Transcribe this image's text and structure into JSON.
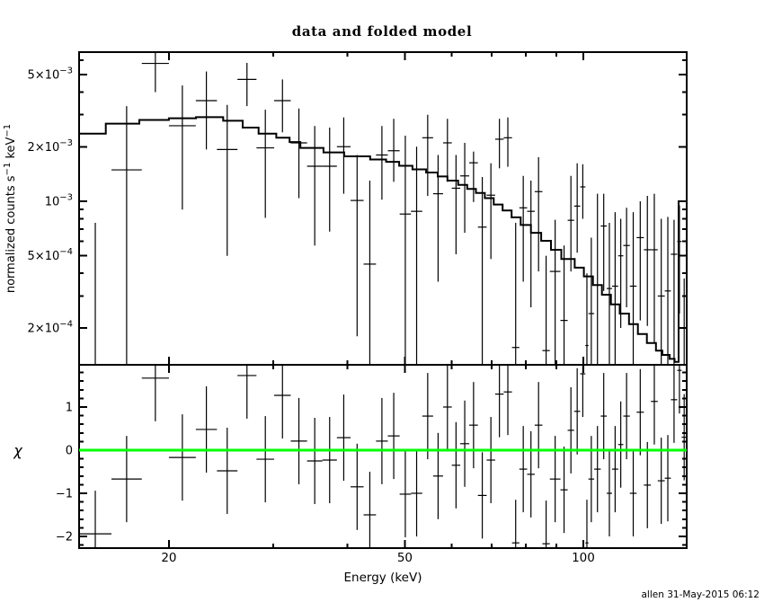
{
  "page": {
    "background": "#ffffff",
    "credit": "allen 31-May-2015 06:12"
  },
  "chart_data": {
    "type": "scatter",
    "title": "data and folded model",
    "xlabel": "Energy (keV)",
    "x_scale": "log",
    "x_range": [
      14.11,
      149.4
    ],
    "x_major_ticks": [
      {
        "v": 20,
        "label": "20"
      },
      {
        "v": 50,
        "label": "50"
      },
      {
        "v": 100,
        "label": "100"
      }
    ],
    "x_minor_ticks": [
      30,
      40,
      60,
      70,
      80,
      90
    ],
    "colors": {
      "frame": "#000000",
      "data": "#000000",
      "model": "#000000",
      "zero_line": "#00ff00",
      "background": "#ffffff"
    },
    "points_format": "[E_lo_keV, E_hi_keV, value, err_lo_end, err_hi_end, chi]; value in counts s^-1 keV^-1; null = clipped beyond panel edge; chi error bars are +/-1",
    "points": [
      [
        14.11,
        16.0,
        null,
        null,
        0.00076,
        -1.94
      ],
      [
        16.0,
        18.0,
        0.00149,
        null,
        0.00335,
        -0.67
      ],
      [
        18.0,
        20.0,
        0.00576,
        0.004,
        null,
        1.67
      ],
      [
        20.0,
        22.2,
        0.00261,
        0.0009,
        0.00435,
        -0.17
      ],
      [
        22.2,
        24.1,
        0.00359,
        0.00193,
        0.0052,
        0.48
      ],
      [
        24.1,
        26.1,
        0.00193,
        0.0005,
        0.0034,
        -0.48
      ],
      [
        26.1,
        28.1,
        0.0047,
        0.00335,
        0.0058,
        1.73
      ],
      [
        28.1,
        30.1,
        0.00197,
        0.00081,
        0.0032,
        -0.21
      ],
      [
        30.1,
        32.1,
        0.00359,
        0.0024,
        0.0047,
        1.27
      ],
      [
        32.1,
        34.2,
        0.0021,
        0.00104,
        0.00325,
        0.21
      ],
      [
        34.2,
        36.3,
        0.00156,
        0.00057,
        0.0026,
        -0.25
      ],
      [
        36.3,
        38.4,
        0.00156,
        0.00068,
        0.00255,
        -0.23
      ],
      [
        38.4,
        40.5,
        0.002,
        0.0011,
        0.0029,
        0.29
      ],
      [
        40.5,
        42.6,
        0.00101,
        0.00018,
        0.0018,
        -0.85
      ],
      [
        42.6,
        44.7,
        0.00045,
        null,
        0.0013,
        -1.5
      ],
      [
        44.7,
        46.8,
        0.0018,
        0.00102,
        0.0026,
        0.21
      ],
      [
        46.8,
        49.0,
        0.0019,
        0.00128,
        0.00285,
        0.33
      ],
      [
        49.0,
        51.2,
        0.00085,
        null,
        0.0023,
        -1.02
      ],
      [
        51.2,
        53.5,
        0.00088,
        null,
        0.002,
        -1.0
      ],
      [
        53.5,
        55.8,
        0.00224,
        0.00107,
        0.003,
        0.79
      ],
      [
        55.8,
        58.0,
        0.0011,
        0.00036,
        0.0018,
        -0.6
      ],
      [
        58.0,
        60.0,
        0.0021,
        0.00128,
        0.00285,
        1.0
      ],
      [
        60.0,
        62.0,
        0.00118,
        0.00051,
        0.0018,
        -0.35
      ],
      [
        62.0,
        64.2,
        0.00138,
        0.00067,
        0.0021,
        0.15
      ],
      [
        64.2,
        66.4,
        0.00163,
        0.00099,
        0.00188,
        0.58
      ],
      [
        66.4,
        68.7,
        0.00072,
        null,
        0.00136,
        -1.05
      ],
      [
        68.7,
        71.0,
        0.00108,
        0.00048,
        0.00162,
        -0.23
      ],
      [
        71.0,
        73.4,
        0.0022,
        0.00152,
        0.00285,
        1.3
      ],
      [
        73.4,
        75.8,
        0.00224,
        0.00155,
        0.0029,
        1.35
      ],
      [
        75.8,
        78.0,
        0.000156,
        null,
        0.00076,
        -2.15
      ],
      [
        78.0,
        80.4,
        0.00092,
        0.00036,
        0.00138,
        -0.44
      ],
      [
        80.4,
        82.8,
        0.00088,
        0.00026,
        0.0013,
        -0.56
      ],
      [
        82.8,
        85.3,
        0.00113,
        0.00041,
        0.00175,
        0.58
      ],
      [
        85.3,
        87.8,
        0.00015,
        null,
        0.0005,
        -2.17
      ],
      [
        87.8,
        91.5,
        0.00041,
        null,
        0.00079,
        -0.67
      ],
      [
        91.5,
        94.1,
        0.00022,
        null,
        0.00057,
        -0.92
      ],
      [
        94.1,
        96.5,
        0.000785,
        0.00041,
        0.00138,
        0.46
      ],
      [
        96.5,
        98.8,
        0.00094,
        0.00052,
        0.00162,
        0.9
      ],
      [
        98.8,
        100.8,
        0.0012,
        0.0008,
        0.0016,
        1.77
      ],
      [
        100.8,
        102.0,
        0.00016,
        null,
        0.0004,
        -2.15
      ],
      [
        102.0,
        104.3,
        0.00024,
        null,
        0.00063,
        -0.67
      ],
      [
        104.3,
        107.0,
        0.000345,
        null,
        0.0011,
        -0.44
      ],
      [
        107.0,
        109.5,
        0.00073,
        0.00032,
        0.0011,
        0.79
      ],
      [
        109.5,
        111.8,
        0.00033,
        null,
        0.00076,
        -1.0
      ],
      [
        111.8,
        114.5,
        0.00034,
        null,
        0.00087,
        -0.44
      ],
      [
        114.5,
        116.8,
        0.0005,
        0.0002,
        0.0008,
        0.13
      ],
      [
        116.8,
        119.8,
        0.00057,
        0.00026,
        0.00092,
        0.79
      ],
      [
        119.8,
        123.0,
        0.00034,
        null,
        0.00087,
        -1.0
      ],
      [
        123.0,
        126.5,
        0.00063,
        0.00022,
        0.001,
        0.88
      ],
      [
        126.5,
        130.0,
        0.00054,
        0.000205,
        0.00107,
        -0.81
      ],
      [
        130.0,
        133.5,
        0.00054,
        0.000166,
        0.0011,
        1.13
      ],
      [
        133.5,
        137.2,
        0.0003,
        null,
        0.0008,
        -0.71
      ],
      [
        137.2,
        140.5,
        0.00032,
        null,
        0.00082,
        -0.65
      ],
      [
        140.5,
        144.0,
        0.00051,
        null,
        0.00079,
        1.17
      ],
      [
        144.0,
        146.5,
        0.0006,
        0.00024,
        0.00095,
        1.85
      ],
      [
        146.5,
        149.4,
        0.0002,
        null,
        0.000375,
        0.3
      ]
    ],
    "panels": [
      {
        "id": "spectrum",
        "ylabel": "normalized counts s−1 keV−1",
        "ylabel_parts": [
          {
            "t": "normalized counts s"
          },
          {
            "t": "−1",
            "sup": true
          },
          {
            "t": " keV"
          },
          {
            "t": "−1",
            "sup": true
          }
        ],
        "y_scale": "log",
        "y_range": [
          0.0001252,
          0.00665
        ],
        "y_major_ticks": [
          {
            "v": 0.005,
            "base": "5×10",
            "exp": "−3"
          },
          {
            "v": 0.002,
            "base": "2×10",
            "exp": "−3"
          },
          {
            "v": 0.001,
            "base": "10",
            "exp": "−3"
          },
          {
            "v": 0.0005,
            "base": "5×10",
            "exp": "−4"
          },
          {
            "v": 0.0002,
            "base": "2×10",
            "exp": "−4"
          }
        ],
        "y_minor_ticks": [
          0.0003,
          0.0004,
          0.0006,
          0.0007,
          0.0008,
          0.0009,
          0.003,
          0.004,
          0.006
        ],
        "model_note": "stepped folded-model histogram; final edge bin jumps up to ~1e-3",
        "model_steps": [
          [
            14.11,
            0.00236
          ],
          [
            15.65,
            0.00268
          ],
          [
            17.83,
            0.00281
          ],
          [
            20.0,
            0.00287
          ],
          [
            22.22,
            0.00291
          ],
          [
            24.69,
            0.00278
          ],
          [
            26.63,
            0.00255
          ],
          [
            28.33,
            0.00236
          ],
          [
            30.35,
            0.00224
          ],
          [
            31.96,
            0.00212
          ],
          [
            33.33,
            0.00197
          ],
          [
            36.45,
            0.00186
          ],
          [
            39.5,
            0.00177
          ],
          [
            43.7,
            0.0017
          ],
          [
            46.5,
            0.00165
          ],
          [
            48.9,
            0.00157
          ],
          [
            51.5,
            0.0015
          ],
          [
            54.3,
            0.00144
          ],
          [
            56.8,
            0.00137
          ],
          [
            59.0,
            0.0013
          ],
          [
            61.5,
            0.00123
          ],
          [
            63.7,
            0.00117
          ],
          [
            65.9,
            0.00111
          ],
          [
            68.2,
            0.00104
          ],
          [
            70.6,
            0.00096
          ],
          [
            73.1,
            0.00089
          ],
          [
            75.7,
            0.000815
          ],
          [
            78.4,
            0.00074
          ],
          [
            81.6,
            0.00067
          ],
          [
            84.9,
            0.000605
          ],
          [
            88.2,
            0.00054
          ],
          [
            91.8,
            0.00048
          ],
          [
            96.7,
            0.00043
          ],
          [
            100.2,
            0.000385
          ],
          [
            103.8,
            0.000345
          ],
          [
            107.5,
            0.000305
          ],
          [
            111.3,
            0.00027
          ],
          [
            115.2,
            0.00024
          ],
          [
            119.4,
            0.00021
          ],
          [
            123.6,
            0.000185
          ],
          [
            128.0,
            0.000165
          ],
          [
            132.6,
            0.00015
          ],
          [
            135.9,
            0.000142
          ],
          [
            139.8,
            0.000135
          ],
          [
            142.5,
            0.00013
          ],
          [
            144.8,
            0.001
          ],
          [
            149.4,
            0.001
          ]
        ]
      },
      {
        "id": "residuals",
        "ylabel": "χ",
        "y_scale": "linear",
        "y_range": [
          -2.271,
          1.979
        ],
        "y_major_ticks": [
          {
            "v": 1,
            "label": "1"
          },
          {
            "v": 0,
            "label": "0"
          },
          {
            "v": -1,
            "label": "−1"
          },
          {
            "v": -2,
            "label": "−2"
          }
        ],
        "y_minor_step": 0.2,
        "zero_line": 0,
        "point_sigma": 1
      }
    ]
  }
}
